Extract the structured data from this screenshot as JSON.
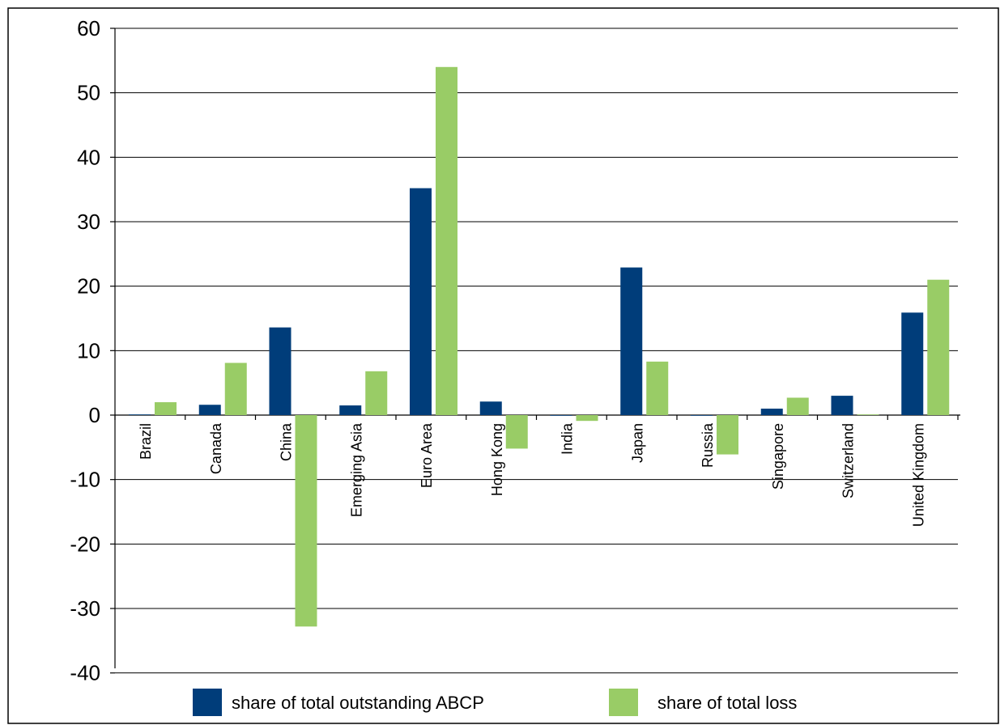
{
  "chart_data": {
    "type": "bar",
    "categories": [
      "Brazil",
      "Canada",
      "China",
      "Emerging Asia",
      "Euro Area",
      "Hong Kong",
      "India",
      "Japan",
      "Russia",
      "Singapore",
      "Switzerland",
      "United Kingdom"
    ],
    "series": [
      {
        "name": "share of total outstanding ABCP",
        "color": "#003d7a",
        "values": [
          0.1,
          1.6,
          13.6,
          1.5,
          35.2,
          2.1,
          0.0,
          22.9,
          0.0,
          1.0,
          3.0,
          15.9
        ]
      },
      {
        "name": "share of total loss",
        "color": "#99cc66",
        "values": [
          2.0,
          8.1,
          -32.8,
          6.8,
          54.0,
          -5.2,
          -0.9,
          8.3,
          -6.1,
          2.7,
          0.1,
          21.0
        ]
      }
    ],
    "title": "",
    "xlabel": "",
    "ylabel": "",
    "ylim": [
      -40,
      60
    ],
    "yticks": [
      -40,
      -30,
      -20,
      -10,
      0,
      10,
      20,
      30,
      40,
      50,
      60
    ],
    "grid": true,
    "legend": "bottom"
  }
}
